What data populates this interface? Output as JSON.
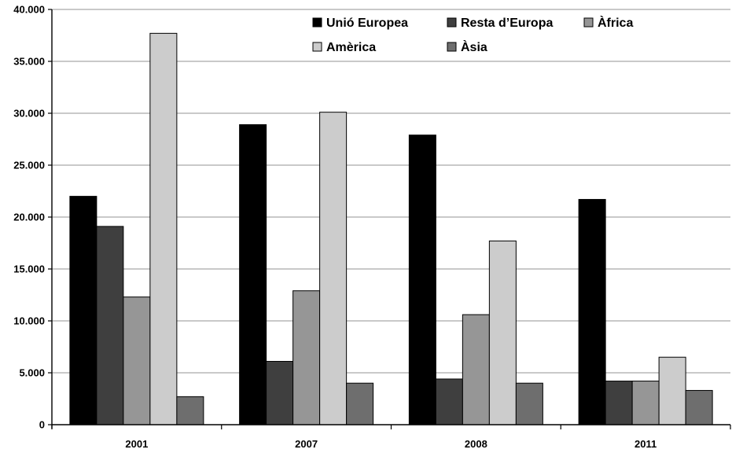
{
  "chart_data": {
    "type": "bar",
    "categories": [
      "2001",
      "2007",
      "2008",
      "2011"
    ],
    "series": [
      {
        "name": "Unió Europea",
        "color": "#000000",
        "values": [
          22000,
          28900,
          27900,
          21700
        ]
      },
      {
        "name": "Resta d’Europa",
        "color": "#3f3f3f",
        "values": [
          19100,
          6100,
          4400,
          4200
        ]
      },
      {
        "name": "Àfrica",
        "color": "#969696",
        "values": [
          12300,
          12900,
          10600,
          4200
        ]
      },
      {
        "name": "Amèrica",
        "color": "#cccccc",
        "values": [
          37700,
          30100,
          17700,
          6500
        ]
      },
      {
        "name": "Àsia",
        "color": "#6e6e6e",
        "values": [
          2700,
          4000,
          4000,
          3300
        ]
      }
    ],
    "ylim": [
      0,
      40000
    ],
    "yticks": [
      0,
      5000,
      10000,
      15000,
      20000,
      25000,
      30000,
      35000,
      40000
    ],
    "ytick_labels": [
      "0",
      "5.000",
      "10.000",
      "15.000",
      "20.000",
      "25.000",
      "30.000",
      "35.000",
      "40.000"
    ],
    "grid": true,
    "legend_position": "top-right",
    "title": "",
    "xlabel": "",
    "ylabel": ""
  }
}
